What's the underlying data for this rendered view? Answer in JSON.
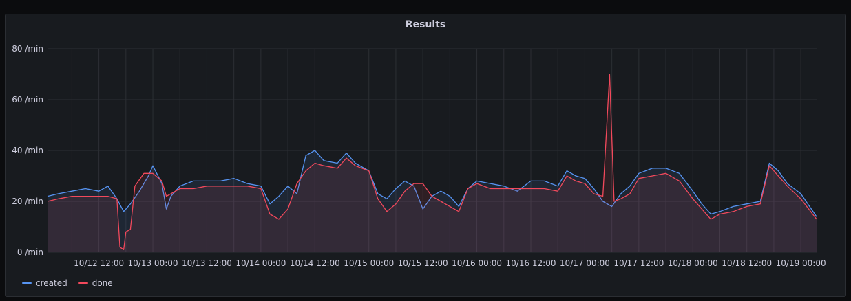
{
  "panel": {
    "title": "Results"
  },
  "colors": {
    "created": "#5794f2",
    "done": "#f2495c",
    "grid": "#2c2f34",
    "text": "#ccccdc"
  },
  "chart_data": {
    "type": "line",
    "title": "Results",
    "xlabel": "",
    "ylabel": "",
    "ylim": [
      0,
      80
    ],
    "yticks": [
      0,
      20,
      40,
      60,
      80
    ],
    "yunit": "/min",
    "xlim": [
      "10/12 00:35",
      "10/19 03:30"
    ],
    "xticks": [
      "10/12 12:00",
      "10/13 00:00",
      "10/13 12:00",
      "10/14 00:00",
      "10/14 12:00",
      "10/15 00:00",
      "10/15 12:00",
      "10/16 00:00",
      "10/16 12:00",
      "10/17 00:00",
      "10/17 12:00",
      "10/18 00:00",
      "10/18 12:00",
      "10/19 00:00"
    ],
    "grid": true,
    "legend": "bottom-left",
    "series": [
      {
        "name": "created",
        "color": "#5794f2",
        "points": [
          [
            "10/12 00:35",
            22
          ],
          [
            "10/12 03:00",
            23
          ],
          [
            "10/12 06:00",
            24
          ],
          [
            "10/12 09:00",
            25
          ],
          [
            "10/12 12:00",
            24
          ],
          [
            "10/12 14:00",
            26
          ],
          [
            "10/12 16:00",
            21
          ],
          [
            "10/12 17:30",
            16
          ],
          [
            "10/12 19:00",
            19
          ],
          [
            "10/12 21:00",
            24
          ],
          [
            "10/12 23:00",
            30
          ],
          [
            "10/13 00:00",
            34
          ],
          [
            "10/13 02:00",
            27
          ],
          [
            "10/13 03:00",
            17
          ],
          [
            "10/13 04:00",
            22
          ],
          [
            "10/13 06:00",
            26
          ],
          [
            "10/13 09:00",
            28
          ],
          [
            "10/13 12:00",
            28
          ],
          [
            "10/13 15:00",
            28
          ],
          [
            "10/13 18:00",
            29
          ],
          [
            "10/13 21:00",
            27
          ],
          [
            "10/14 00:00",
            26
          ],
          [
            "10/14 02:00",
            19
          ],
          [
            "10/14 04:00",
            22
          ],
          [
            "10/14 06:00",
            26
          ],
          [
            "10/14 08:00",
            23
          ],
          [
            "10/14 10:00",
            38
          ],
          [
            "10/14 12:00",
            40
          ],
          [
            "10/14 14:00",
            36
          ],
          [
            "10/14 17:00",
            35
          ],
          [
            "10/14 19:00",
            39
          ],
          [
            "10/14 21:00",
            35
          ],
          [
            "10/15 00:00",
            32
          ],
          [
            "10/15 02:00",
            23
          ],
          [
            "10/15 04:00",
            21
          ],
          [
            "10/15 06:00",
            25
          ],
          [
            "10/15 08:00",
            28
          ],
          [
            "10/15 10:00",
            26
          ],
          [
            "10/15 12:00",
            17
          ],
          [
            "10/15 14:00",
            22
          ],
          [
            "10/15 16:00",
            24
          ],
          [
            "10/15 18:00",
            22
          ],
          [
            "10/15 20:00",
            18
          ],
          [
            "10/15 22:00",
            25
          ],
          [
            "10/16 00:00",
            28
          ],
          [
            "10/16 03:00",
            27
          ],
          [
            "10/16 06:00",
            26
          ],
          [
            "10/16 09:00",
            24
          ],
          [
            "10/16 12:00",
            28
          ],
          [
            "10/16 15:00",
            28
          ],
          [
            "10/16 18:00",
            26
          ],
          [
            "10/16 20:00",
            32
          ],
          [
            "10/16 22:00",
            30
          ],
          [
            "10/17 00:00",
            29
          ],
          [
            "10/17 02:00",
            25
          ],
          [
            "10/17 04:00",
            20
          ],
          [
            "10/17 06:00",
            18
          ],
          [
            "10/17 08:00",
            23
          ],
          [
            "10/17 10:00",
            26
          ],
          [
            "10/17 12:00",
            31
          ],
          [
            "10/17 15:00",
            33
          ],
          [
            "10/17 18:00",
            33
          ],
          [
            "10/17 21:00",
            31
          ],
          [
            "10/18 00:00",
            24
          ],
          [
            "10/18 02:00",
            19
          ],
          [
            "10/18 04:00",
            15
          ],
          [
            "10/18 06:00",
            16
          ],
          [
            "10/18 09:00",
            18
          ],
          [
            "10/18 12:00",
            19
          ],
          [
            "10/18 15:00",
            20
          ],
          [
            "10/18 17:00",
            35
          ],
          [
            "10/18 19:00",
            32
          ],
          [
            "10/18 21:00",
            27
          ],
          [
            "10/19 00:00",
            23
          ],
          [
            "10/19 03:30",
            14
          ]
        ]
      },
      {
        "name": "done",
        "color": "#f2495c",
        "points": [
          [
            "10/12 00:35",
            20
          ],
          [
            "10/12 03:00",
            21
          ],
          [
            "10/12 06:00",
            22
          ],
          [
            "10/12 09:00",
            22
          ],
          [
            "10/12 12:00",
            22
          ],
          [
            "10/12 14:00",
            22
          ],
          [
            "10/12 16:00",
            21
          ],
          [
            "10/12 16:40",
            2
          ],
          [
            "10/12 17:30",
            1
          ],
          [
            "10/12 18:00",
            8
          ],
          [
            "10/12 19:00",
            9
          ],
          [
            "10/12 20:00",
            26
          ],
          [
            "10/12 22:00",
            31
          ],
          [
            "10/13 00:00",
            31
          ],
          [
            "10/13 02:00",
            28
          ],
          [
            "10/13 03:00",
            22
          ],
          [
            "10/13 04:00",
            23
          ],
          [
            "10/13 06:00",
            25
          ],
          [
            "10/13 09:00",
            25
          ],
          [
            "10/13 12:00",
            26
          ],
          [
            "10/13 15:00",
            26
          ],
          [
            "10/13 18:00",
            26
          ],
          [
            "10/13 21:00",
            26
          ],
          [
            "10/14 00:00",
            25
          ],
          [
            "10/14 02:00",
            15
          ],
          [
            "10/14 04:00",
            13
          ],
          [
            "10/14 06:00",
            17
          ],
          [
            "10/14 08:00",
            27
          ],
          [
            "10/14 10:00",
            32
          ],
          [
            "10/14 12:00",
            35
          ],
          [
            "10/14 14:00",
            34
          ],
          [
            "10/14 17:00",
            33
          ],
          [
            "10/14 19:00",
            37
          ],
          [
            "10/14 21:00",
            34
          ],
          [
            "10/15 00:00",
            32
          ],
          [
            "10/15 02:00",
            21
          ],
          [
            "10/15 04:00",
            16
          ],
          [
            "10/15 06:00",
            19
          ],
          [
            "10/15 08:00",
            24
          ],
          [
            "10/15 10:00",
            27
          ],
          [
            "10/15 12:00",
            27
          ],
          [
            "10/15 14:00",
            22
          ],
          [
            "10/15 16:00",
            20
          ],
          [
            "10/15 18:00",
            18
          ],
          [
            "10/15 20:00",
            16
          ],
          [
            "10/15 22:00",
            25
          ],
          [
            "10/16 00:00",
            27
          ],
          [
            "10/16 03:00",
            25
          ],
          [
            "10/16 06:00",
            25
          ],
          [
            "10/16 09:00",
            25
          ],
          [
            "10/16 12:00",
            25
          ],
          [
            "10/16 15:00",
            25
          ],
          [
            "10/16 18:00",
            24
          ],
          [
            "10/16 20:00",
            30
          ],
          [
            "10/16 22:00",
            28
          ],
          [
            "10/17 00:00",
            27
          ],
          [
            "10/17 02:00",
            23
          ],
          [
            "10/17 04:00",
            22
          ],
          [
            "10/17 05:30",
            70
          ],
          [
            "10/17 06:30",
            20
          ],
          [
            "10/17 08:00",
            21
          ],
          [
            "10/17 10:00",
            23
          ],
          [
            "10/17 12:00",
            29
          ],
          [
            "10/17 15:00",
            30
          ],
          [
            "10/17 18:00",
            31
          ],
          [
            "10/17 21:00",
            28
          ],
          [
            "10/18 00:00",
            21
          ],
          [
            "10/18 02:00",
            17
          ],
          [
            "10/18 04:00",
            13
          ],
          [
            "10/18 06:00",
            15
          ],
          [
            "10/18 09:00",
            16
          ],
          [
            "10/18 12:00",
            18
          ],
          [
            "10/18 15:00",
            19
          ],
          [
            "10/18 17:00",
            34
          ],
          [
            "10/18 19:00",
            30
          ],
          [
            "10/18 21:00",
            26
          ],
          [
            "10/19 00:00",
            21
          ],
          [
            "10/19 03:30",
            13
          ]
        ]
      }
    ]
  }
}
